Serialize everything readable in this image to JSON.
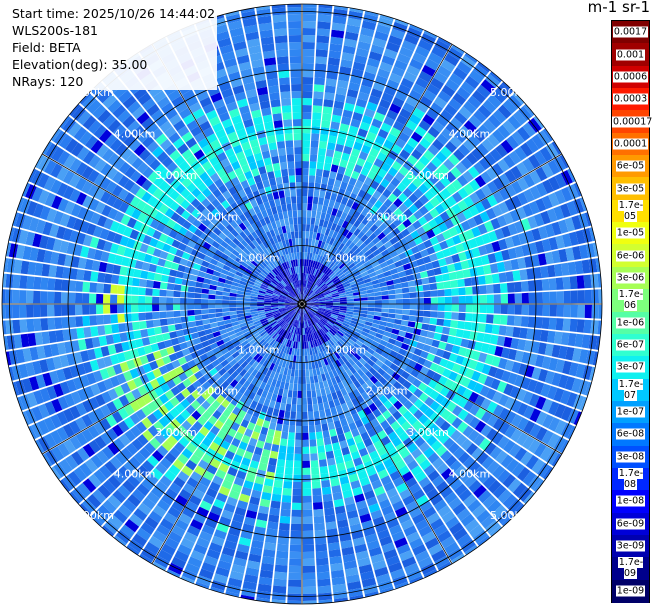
{
  "header": {
    "start_time": "Start time: 2025/10/26 14:44:02",
    "instrument": "WLS200s-181",
    "field": "Field: BETA",
    "elevation": "Elevation(deg): 35.00",
    "nrays": "NRays: 120"
  },
  "plot": {
    "n_rays": 120,
    "range_labels": [
      "1.00km",
      "2.00km",
      "3.00km",
      "4.00km",
      "5.00km"
    ]
  },
  "colorbar": {
    "title": "m-1 sr-1",
    "labels": [
      "0.0017",
      "0.001",
      "0.0006",
      "0.0003",
      "0.00017",
      "0.0001",
      "6e-05",
      "3e-05",
      "1.7e-05",
      "1e-05",
      "6e-06",
      "3e-06",
      "1.7e-06",
      "1e-06",
      "6e-07",
      "3e-07",
      "1.7e-07",
      "1e-07",
      "6e-08",
      "3e-08",
      "1.7e-08",
      "1e-08",
      "6e-09",
      "3e-09",
      "1.7e-09",
      "1e-09"
    ],
    "colors": [
      "#800000",
      "#a00000",
      "#d00000",
      "#ff1a00",
      "#ff4500",
      "#ff7000",
      "#ff9a00",
      "#ffbf00",
      "#ffe000",
      "#f0ff10",
      "#d2ff30",
      "#a6ff55",
      "#7dff7d",
      "#55ffa6",
      "#30ffd0",
      "#10f0f0",
      "#00c8ff",
      "#00a0ff",
      "#0078ff",
      "#0050ff",
      "#0028ff",
      "#0000ff",
      "#0000d8",
      "#0000b0",
      "#00008c",
      "#000068"
    ]
  }
}
